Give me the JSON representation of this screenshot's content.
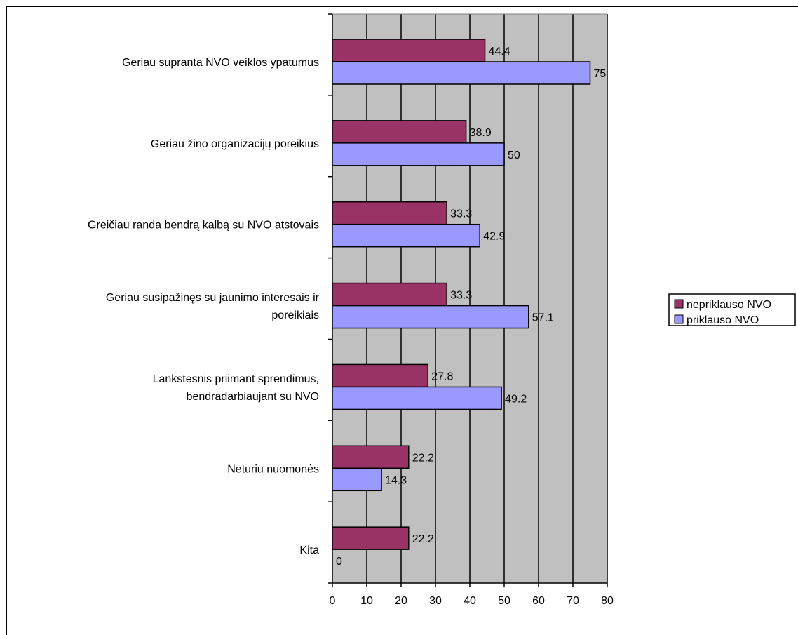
{
  "chart_data": {
    "type": "bar",
    "orientation": "horizontal",
    "categories": [
      [
        "Geriau supranta NVO veiklos ypatumus"
      ],
      [
        "Geriau žino organizacijų poreikius"
      ],
      [
        "Greičiau randa bendrą kalbą su NVO atstovais"
      ],
      [
        "Geriau susipažinęs su jaunimo interesais ir",
        "poreikiais"
      ],
      [
        "Lankstesnis priimant sprendimus,",
        "bendradarbiaujant su NVO"
      ],
      [
        "Neturiu nuomonės"
      ],
      [
        "Kita"
      ]
    ],
    "series": [
      {
        "name": "nepriklauso NVO",
        "color": "#993366",
        "values": [
          44.4,
          38.9,
          33.3,
          33.3,
          27.8,
          22.2,
          22.2
        ]
      },
      {
        "name": "priklauso NVO",
        "color": "#9999ff",
        "values": [
          75,
          50,
          42.9,
          57.1,
          49.2,
          14.3,
          0
        ]
      }
    ],
    "data_labels": [
      [
        "44.4",
        "38.9",
        "33.3",
        "33.3",
        "27.8",
        "22.2",
        "22.2"
      ],
      [
        "75",
        "50",
        "42.9",
        "57.1",
        "49.2",
        "14.3",
        "0"
      ]
    ],
    "xlim": [
      0,
      80
    ],
    "x_ticks": [
      0,
      10,
      20,
      30,
      40,
      50,
      60,
      70,
      80
    ],
    "plot_background": "#c0c0c0",
    "grid": true,
    "legend_position": "right"
  }
}
